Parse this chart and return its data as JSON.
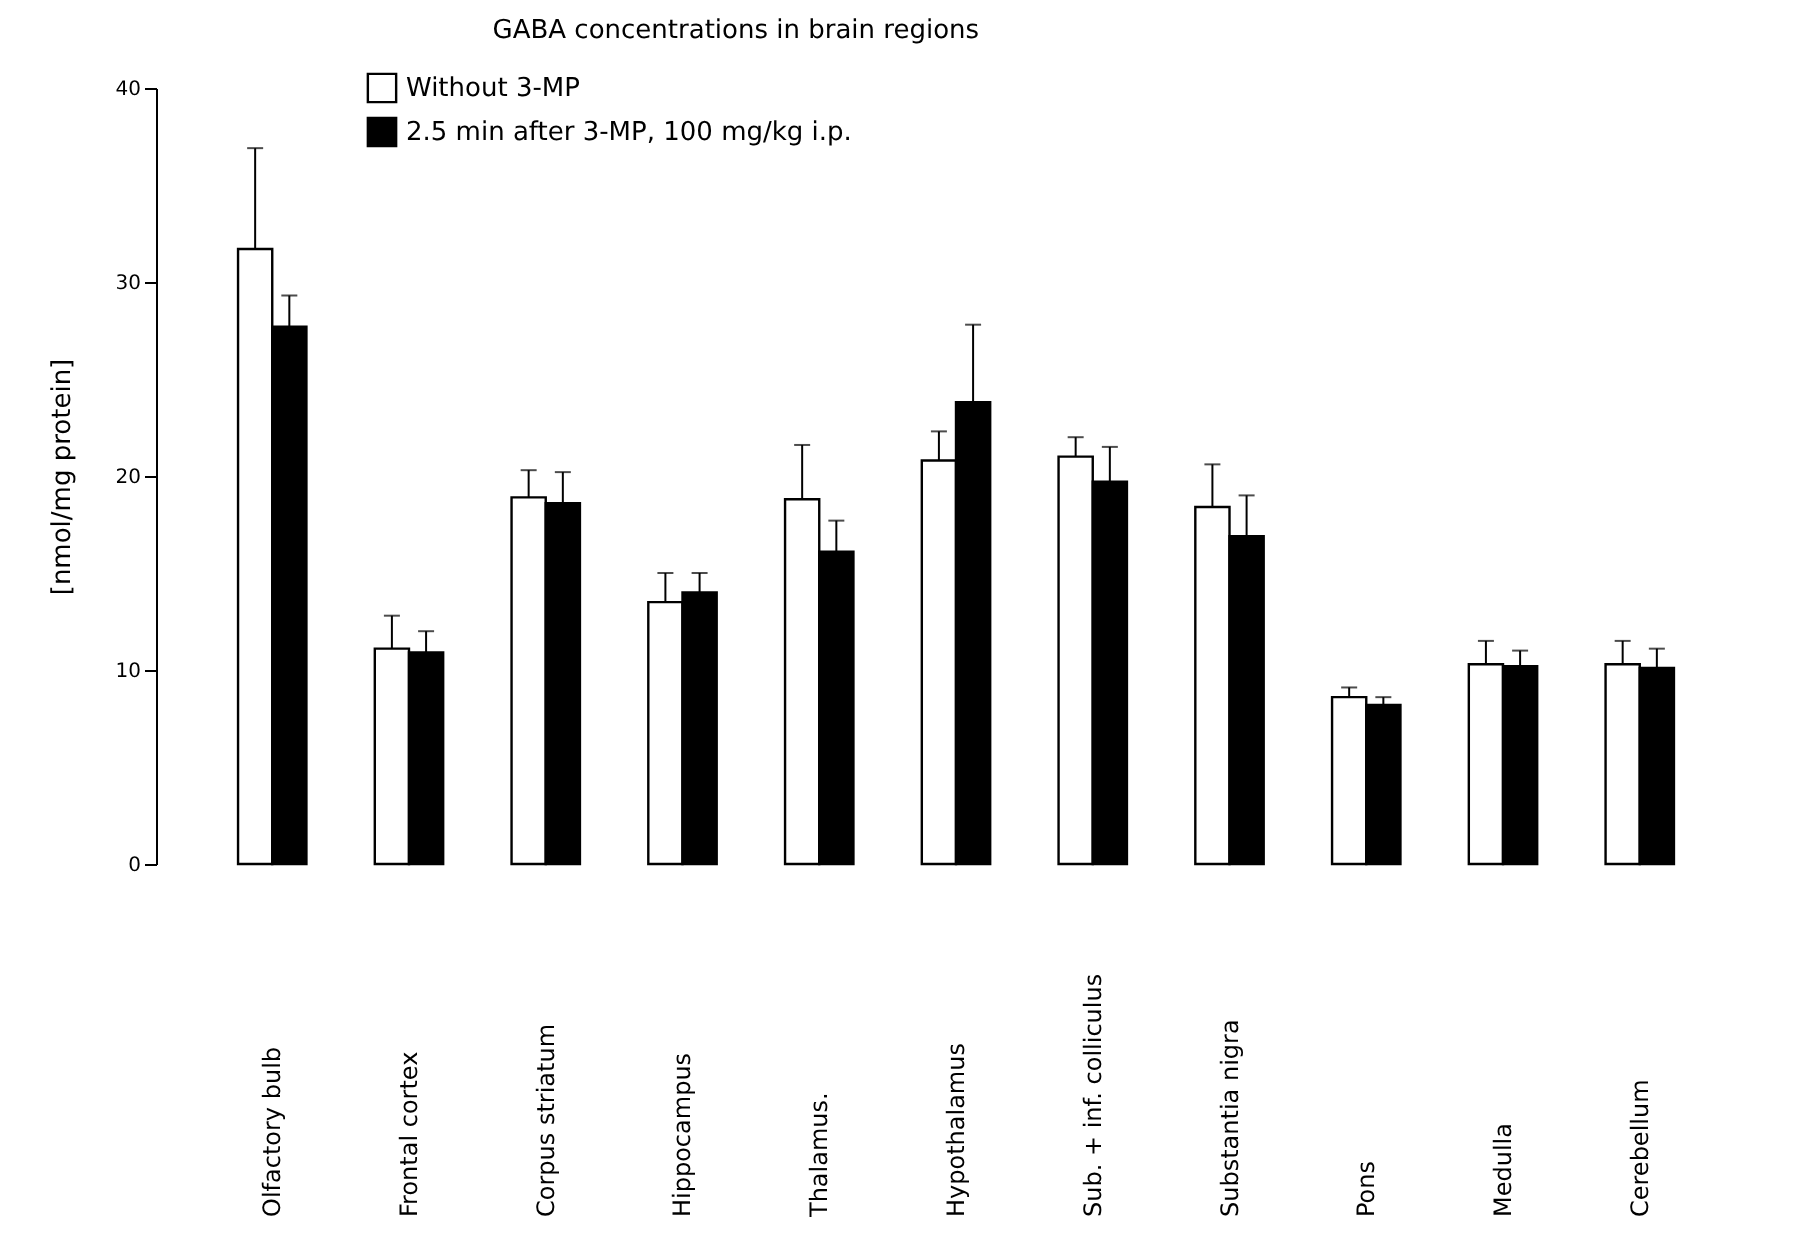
{
  "chart_data": {
    "type": "bar",
    "title": "GABA concentrations in brain regions",
    "ylabel": "[nmol/mg protein]",
    "categories": [
      "Olfactory  bulb",
      "Frontal  cortex",
      "Corpus  striatum",
      "Hippocampus",
      "Thalamus.",
      "Hypothalamus",
      "Sub.  +  inf.  colliculus",
      "Substantia  nigra",
      "Pons",
      "Medulla",
      "Cerebellum"
    ],
    "series": [
      {
        "name": "Without  3-MP",
        "color": "#ffffff",
        "values": [
          31.7,
          11.1,
          18.9,
          13.5,
          18.8,
          20.8,
          21.0,
          18.4,
          8.6,
          10.3,
          10.3
        ],
        "errors": [
          [
            31.7,
            36.9
          ],
          [
            11.1,
            12.8
          ],
          [
            18.9,
            20.3
          ],
          [
            13.5,
            15.0
          ],
          [
            18.8,
            21.6
          ],
          [
            20.8,
            22.3
          ],
          [
            21.0,
            22.0
          ],
          [
            18.4,
            20.6
          ],
          [
            8.6,
            9.1
          ],
          [
            10.3,
            11.5
          ],
          [
            10.3,
            11.5
          ]
        ]
      },
      {
        "name": "2.5  min  after  3-MP,  100  mg/kg  i.p.",
        "color": "#000000",
        "values": [
          27.7,
          10.9,
          18.6,
          14.0,
          16.1,
          23.8,
          19.7,
          16.9,
          8.2,
          10.2,
          10.1
        ],
        "errors": [
          [
            27.7,
            29.3
          ],
          [
            10.9,
            12.0
          ],
          [
            18.6,
            20.2
          ],
          [
            14.0,
            15.0
          ],
          [
            16.1,
            17.7
          ],
          [
            23.8,
            27.8
          ],
          [
            19.7,
            21.5
          ],
          [
            16.9,
            19.0
          ],
          [
            8.2,
            8.6
          ],
          [
            10.2,
            11.0
          ],
          [
            10.1,
            11.1
          ]
        ]
      }
    ],
    "ylim": [
      0,
      40
    ],
    "yticks": [
      0,
      10,
      20,
      30,
      40
    ],
    "legend": "top",
    "grid": false
  }
}
